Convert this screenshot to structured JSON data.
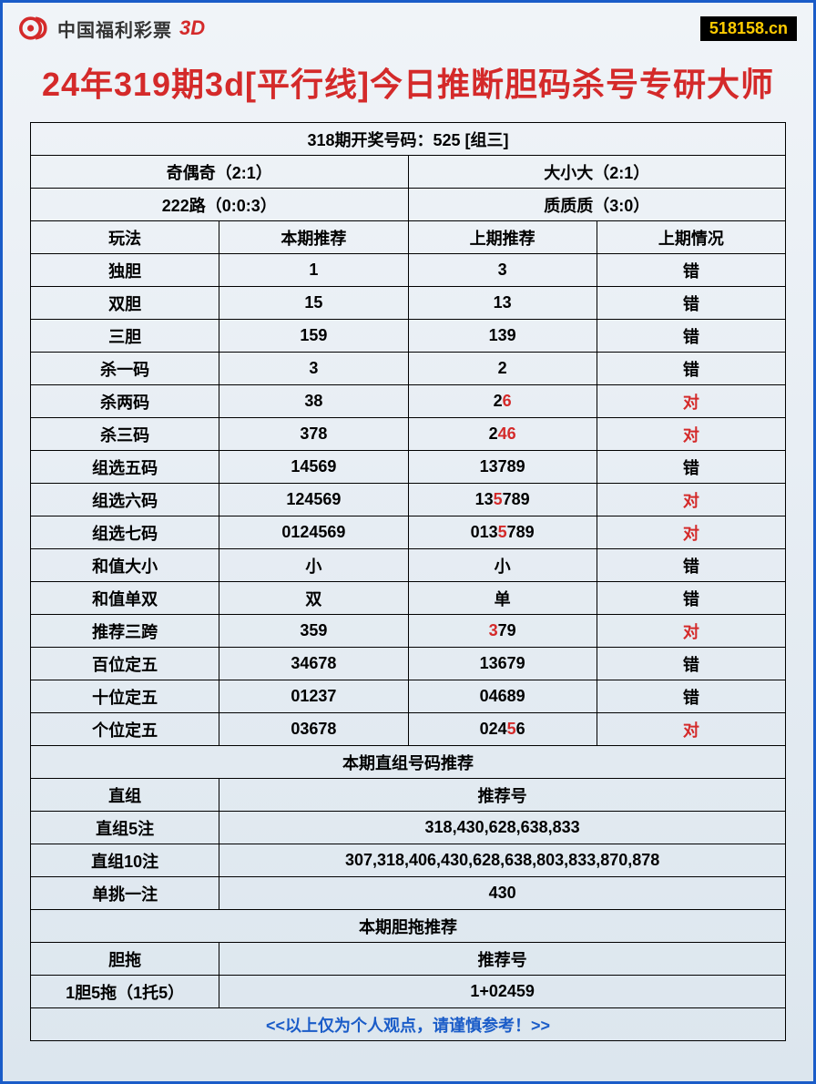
{
  "header": {
    "brand_text": "中国福利彩票",
    "brand_3d": "3D",
    "site_badge": "518158.cn"
  },
  "title": "24年319期3d[平行线]今日推断胆码杀号专研大师",
  "result_line": "318期开奖号码：525 [组三]",
  "summary": {
    "r1c1": "奇偶奇（2:1）",
    "r1c2": "大小大（2:1）",
    "r2c1": "222路（0:0:3）",
    "r2c2": "质质质（3:0）"
  },
  "columns": {
    "c1": "玩法",
    "c2": "本期推荐",
    "c3": "上期推荐",
    "c4": "上期情况"
  },
  "rows": [
    {
      "name": "独胆",
      "cur": "1",
      "prev": [
        [
          "3",
          false
        ]
      ],
      "status": "错",
      "status_red": false
    },
    {
      "name": "双胆",
      "cur": "15",
      "prev": [
        [
          "13",
          false
        ]
      ],
      "status": "错",
      "status_red": false
    },
    {
      "name": "三胆",
      "cur": "159",
      "prev": [
        [
          "139",
          false
        ]
      ],
      "status": "错",
      "status_red": false
    },
    {
      "name": "杀一码",
      "cur": "3",
      "prev": [
        [
          "2",
          false
        ]
      ],
      "status": "错",
      "status_red": false
    },
    {
      "name": "杀两码",
      "cur": "38",
      "prev": [
        [
          "2",
          false
        ],
        [
          "6",
          true
        ]
      ],
      "status": "对",
      "status_red": true
    },
    {
      "name": "杀三码",
      "cur": "378",
      "prev": [
        [
          "2",
          false
        ],
        [
          "4",
          true
        ],
        [
          "6",
          true
        ]
      ],
      "status": "对",
      "status_red": true
    },
    {
      "name": "组选五码",
      "cur": "14569",
      "prev": [
        [
          "13789",
          false
        ]
      ],
      "status": "错",
      "status_red": false
    },
    {
      "name": "组选六码",
      "cur": "124569",
      "prev": [
        [
          "13",
          false
        ],
        [
          "5",
          true
        ],
        [
          "789",
          false
        ]
      ],
      "status": "对",
      "status_red": true
    },
    {
      "name": "组选七码",
      "cur": "0124569",
      "prev": [
        [
          "013",
          false
        ],
        [
          "5",
          true
        ],
        [
          "789",
          false
        ]
      ],
      "status": "对",
      "status_red": true
    },
    {
      "name": "和值大小",
      "cur": "小",
      "prev": [
        [
          "小",
          false
        ]
      ],
      "status": "错",
      "status_red": false
    },
    {
      "name": "和值单双",
      "cur": "双",
      "prev": [
        [
          "单",
          false
        ]
      ],
      "status": "错",
      "status_red": false
    },
    {
      "name": "推荐三跨",
      "cur": "359",
      "prev": [
        [
          "3",
          true
        ],
        [
          "79",
          false
        ]
      ],
      "status": "对",
      "status_red": true
    },
    {
      "name": "百位定五",
      "cur": "34678",
      "prev": [
        [
          "13679",
          false
        ]
      ],
      "status": "错",
      "status_red": false
    },
    {
      "name": "十位定五",
      "cur": "01237",
      "prev": [
        [
          "04689",
          false
        ]
      ],
      "status": "错",
      "status_red": false
    },
    {
      "name": "个位定五",
      "cur": "03678",
      "prev": [
        [
          "024",
          false
        ],
        [
          "5",
          true
        ],
        [
          "6",
          false
        ]
      ],
      "status": "对",
      "status_red": true
    }
  ],
  "section2": {
    "title": "本期直组号码推荐",
    "head_left": "直组",
    "head_right": "推荐号",
    "rows": [
      {
        "name": "直组5注",
        "val": "318,430,628,638,833"
      },
      {
        "name": "直组10注",
        "val": "307,318,406,430,628,638,803,833,870,878"
      },
      {
        "name": "单挑一注",
        "val": "430"
      }
    ]
  },
  "section3": {
    "title": "本期胆拖推荐",
    "head_left": "胆拖",
    "head_right": "推荐号",
    "rows": [
      {
        "name": "1胆5拖（1托5）",
        "val": "1+02459"
      }
    ]
  },
  "footer": "<<以上仅为个人观点，请谨慎参考！>>",
  "colors": {
    "border": "#1a5cc8",
    "title": "#d42a2a",
    "highlight": "#d42a2a",
    "badge_bg": "#000000",
    "badge_fg": "#ffcc00"
  }
}
